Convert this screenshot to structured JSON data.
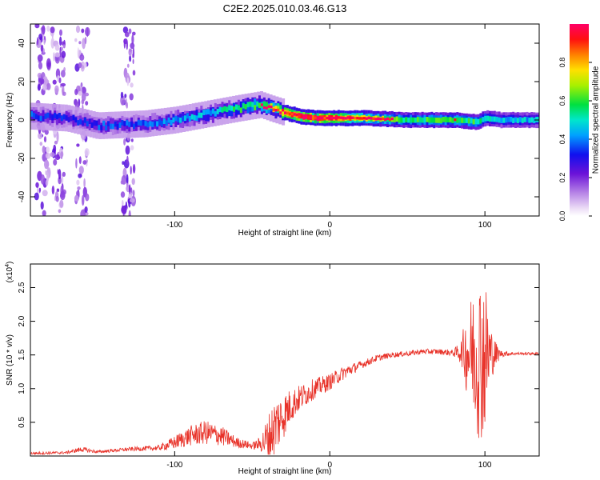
{
  "title": "C2E2.2025.010.03.46.G13",
  "colors": {
    "snr_line": "#e8332a",
    "background": "#ffffff",
    "axis": "#000000"
  },
  "chart_data": [
    {
      "type": "heatmap",
      "xlabel": "Height of straight line (km)",
      "ylabel": "Frequency (Hz)",
      "xlim": [
        -193,
        135
      ],
      "ylim": [
        -50,
        50
      ],
      "xticks": [
        -100,
        0,
        100
      ],
      "yticks": [
        -40,
        -20,
        0,
        20,
        40
      ],
      "colorbar": {
        "label": "Normalized spectral amplitude",
        "range": [
          0,
          1
        ],
        "ticks": [
          "0.0",
          "0.2",
          "0.4",
          "0.6",
          "0.8"
        ]
      },
      "ridge": {
        "x": [
          -193,
          -170,
          -150,
          -120,
          -100,
          -80,
          -60,
          -45,
          -38,
          -30,
          -20,
          -10,
          0,
          20,
          50,
          80,
          95,
          100,
          110,
          135
        ],
        "frequency": [
          2,
          1,
          -3,
          -2,
          0,
          3,
          6,
          8,
          6,
          4,
          2,
          1,
          1,
          1,
          0,
          0,
          -1,
          1,
          0,
          0
        ],
        "amplitude": [
          0.35,
          0.3,
          0.35,
          0.35,
          0.4,
          0.45,
          0.55,
          0.6,
          0.7,
          0.85,
          0.95,
          0.95,
          0.9,
          0.7,
          0.55,
          0.6,
          0.55,
          0.5,
          0.45,
          0.45
        ]
      },
      "noise_columns_x": [
        -185,
        -175,
        -160,
        -130
      ]
    },
    {
      "type": "line",
      "xlabel": "Height of straight line (km)",
      "ylabel": "SNR (10 * v/v)",
      "y_multiplier_label": "(x10",
      "y_multiplier_exp": "4",
      "xlim": [
        -193,
        135
      ],
      "ylim": [
        0,
        2.85
      ],
      "xticks": [
        -100,
        0,
        100
      ],
      "yticks": [
        "0.5",
        "1.0",
        "1.5",
        "2.0",
        "2.5"
      ],
      "series": [
        {
          "envelope_x": [
            -193,
            -170,
            -160,
            -150,
            -130,
            -110,
            -100,
            -90,
            -80,
            -70,
            -60,
            -50,
            -45,
            -40,
            -35,
            -30,
            -25,
            -20,
            -10,
            0,
            10,
            20,
            30,
            40,
            50,
            60,
            70,
            80,
            85,
            88,
            92,
            95,
            98,
            100,
            102,
            105,
            110,
            120,
            135
          ],
          "envelope_y": [
            0.04,
            0.05,
            0.1,
            0.06,
            0.1,
            0.12,
            0.2,
            0.3,
            0.35,
            0.3,
            0.2,
            0.15,
            0.18,
            0.25,
            0.45,
            0.6,
            0.75,
            0.85,
            1.0,
            1.1,
            1.25,
            1.35,
            1.45,
            1.5,
            1.52,
            1.55,
            1.55,
            1.53,
            1.55,
            1.55,
            1.55,
            1.5,
            1.5,
            1.5,
            1.5,
            1.5,
            1.52,
            1.52,
            1.52
          ],
          "noise_amp": [
            0.02,
            0.02,
            0.04,
            0.02,
            0.03,
            0.04,
            0.1,
            0.15,
            0.18,
            0.15,
            0.08,
            0.05,
            0.1,
            0.35,
            0.45,
            0.35,
            0.25,
            0.2,
            0.15,
            0.12,
            0.1,
            0.06,
            0.05,
            0.04,
            0.04,
            0.04,
            0.04,
            0.05,
            0.2,
            0.6,
            0.9,
            1.2,
            1.3,
            1.2,
            0.8,
            0.3,
            0.05,
            0.02,
            0.02
          ]
        }
      ]
    }
  ]
}
